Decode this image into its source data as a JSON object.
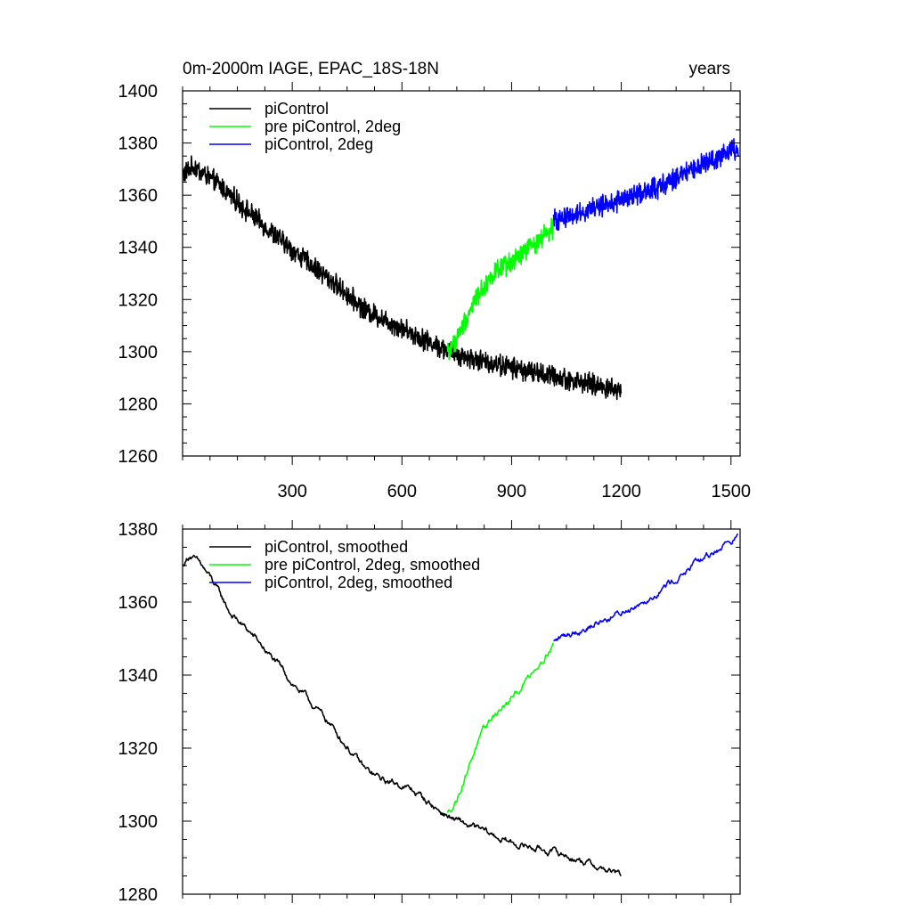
{
  "chart_data": [
    {
      "type": "line",
      "title": "0m-2000m IAGE, EPAC_18S-18N",
      "subtitle_right": "years",
      "xlabel": "",
      "ylabel": "",
      "xlim": [
        0,
        1525
      ],
      "ylim": [
        1260,
        1400
      ],
      "xticks": [
        300,
        600,
        900,
        1200,
        1500
      ],
      "xtick_labels": [
        "300",
        "600",
        "900",
        "1200",
        "1500"
      ],
      "yticks": [
        1260,
        1280,
        1300,
        1320,
        1340,
        1360,
        1380,
        1400
      ],
      "ytick_labels": [
        "1260",
        "1280",
        "1300",
        "1320",
        "1340",
        "1360",
        "1380",
        "1400"
      ],
      "legend_position": "top-left",
      "series": [
        {
          "name": "piControl",
          "color": "#000000",
          "x_start": 1,
          "x_end": 1200,
          "trend_x": [
            1,
            30,
            100,
            200,
            300,
            400,
            500,
            600,
            700,
            750,
            800,
            900,
            1000,
            1100,
            1200
          ],
          "trend_y": [
            1368,
            1371,
            1364,
            1351,
            1339,
            1328,
            1316,
            1309,
            1302,
            1299,
            1297,
            1294,
            1291,
            1288,
            1285
          ],
          "noise": 3.2
        },
        {
          "name": "pre piControl, 2deg",
          "color": "#00ff00",
          "x_start": 725,
          "x_end": 1015,
          "trend_x": [
            725,
            750,
            800,
            850,
            900,
            950,
            1015
          ],
          "trend_y": [
            1300,
            1305,
            1320,
            1330,
            1334,
            1340,
            1348
          ],
          "noise": 3.2
        },
        {
          "name": "piControl, 2deg",
          "color": "#0000ff",
          "x_start": 1015,
          "x_end": 1520,
          "trend_x": [
            1015,
            1050,
            1100,
            1200,
            1300,
            1400,
            1500,
            1520
          ],
          "trend_y": [
            1350,
            1352,
            1354,
            1358,
            1363,
            1370,
            1377,
            1378
          ],
          "noise": 3.2
        }
      ]
    },
    {
      "type": "line",
      "title": "",
      "xlabel": "",
      "ylabel": "",
      "xlim": [
        0,
        1525
      ],
      "ylim": [
        1280,
        1380
      ],
      "xticks": [
        300,
        600,
        900,
        1200,
        1500
      ],
      "xtick_labels": [],
      "yticks": [
        1280,
        1300,
        1320,
        1340,
        1360,
        1380
      ],
      "ytick_labels": [
        "1280",
        "1300",
        "1320",
        "1340",
        "1360",
        "1380"
      ],
      "legend_position": "top-left",
      "series": [
        {
          "name": "piControl, smoothed",
          "color": "#000000",
          "x_start": 1,
          "x_end": 1200,
          "trend_x": [
            1,
            20,
            50,
            80,
            130,
            200,
            300,
            400,
            500,
            550,
            600,
            650,
            700,
            750,
            800,
            900,
            1000,
            1100,
            1200
          ],
          "trend_y": [
            1370,
            1373,
            1370,
            1366,
            1357,
            1350,
            1338,
            1327,
            1314,
            1311,
            1310,
            1307,
            1303,
            1300,
            1298,
            1294,
            1292,
            1289,
            1285
          ],
          "noise": 1.0
        },
        {
          "name": "pre piControl, 2deg, smoothed",
          "color": "#00ff00",
          "x_start": 725,
          "x_end": 1015,
          "trend_x": [
            725,
            750,
            800,
            850,
            900,
            950,
            1015
          ],
          "trend_y": [
            1302,
            1306,
            1320,
            1329,
            1333,
            1340,
            1349
          ],
          "noise": 1.0
        },
        {
          "name": "piControl, 2deg, smoothed",
          "color": "#0000ff",
          "x_start": 1015,
          "x_end": 1520,
          "trend_x": [
            1015,
            1050,
            1100,
            1200,
            1300,
            1400,
            1500,
            1520
          ],
          "trend_y": [
            1349,
            1351,
            1353,
            1357,
            1363,
            1370,
            1377,
            1378
          ],
          "noise": 1.0
        }
      ]
    }
  ]
}
